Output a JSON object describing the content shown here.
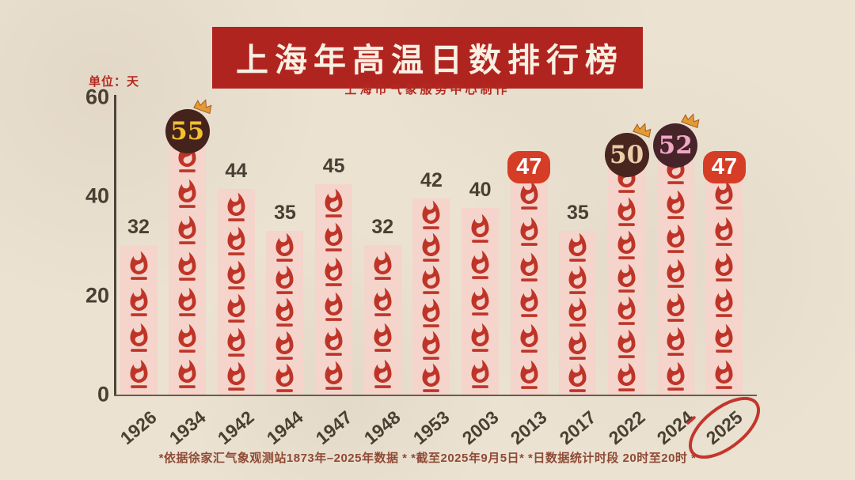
{
  "header": {
    "title": "上海年高温日数排行榜",
    "subtitle": "上海市气象服务中心制作",
    "banner_color": "#b02420"
  },
  "axis": {
    "unit_label": "单位：天",
    "ticks": [
      60,
      40,
      20,
      0
    ]
  },
  "chart_data": {
    "type": "bar",
    "title": "上海年高温日数排行榜",
    "subtitle": "上海市气象服务中心制作",
    "unit": "天",
    "categories": [
      "1926",
      "1934",
      "1942",
      "1944",
      "1947",
      "1948",
      "1953",
      "2003",
      "2013",
      "2017",
      "2022",
      "2024",
      "2025"
    ],
    "values": [
      32,
      55,
      44,
      35,
      45,
      32,
      42,
      40,
      47,
      35,
      50,
      52,
      47
    ],
    "ylim": [
      0,
      60
    ],
    "yticks": [
      0,
      20,
      40,
      60
    ],
    "grid": false,
    "legend": "none",
    "bar_color": "#f4d4cb",
    "flame_color": "#bf3428",
    "value_label_color": "#4a3f33",
    "badges": [
      {
        "year": "1934",
        "value": 55,
        "style": "circle",
        "crown": true,
        "bg": "#45231d",
        "fg": "#f2c12e"
      },
      {
        "year": "2022",
        "value": 50,
        "style": "circle",
        "crown": true,
        "bg": "#48261f",
        "fg": "#eccfa9"
      },
      {
        "year": "2024",
        "value": 52,
        "style": "circle",
        "crown": true,
        "bg": "#47232a",
        "fg": "#f0a8c4"
      },
      {
        "year": "2013",
        "value": 47,
        "style": "tag",
        "bg": "#d63d26",
        "fg": "#ffffff"
      },
      {
        "year": "2025",
        "value": 47,
        "style": "tag",
        "bg": "#d63d26",
        "fg": "#ffffff"
      }
    ],
    "highlight": {
      "year": "2025",
      "circle_color": "#c5352c"
    }
  },
  "footnote": "*依据徐家汇气象观测站1873年–2025年数据 *  *截至2025年9月5日*  *日数据统计时段 20时至20时 *"
}
